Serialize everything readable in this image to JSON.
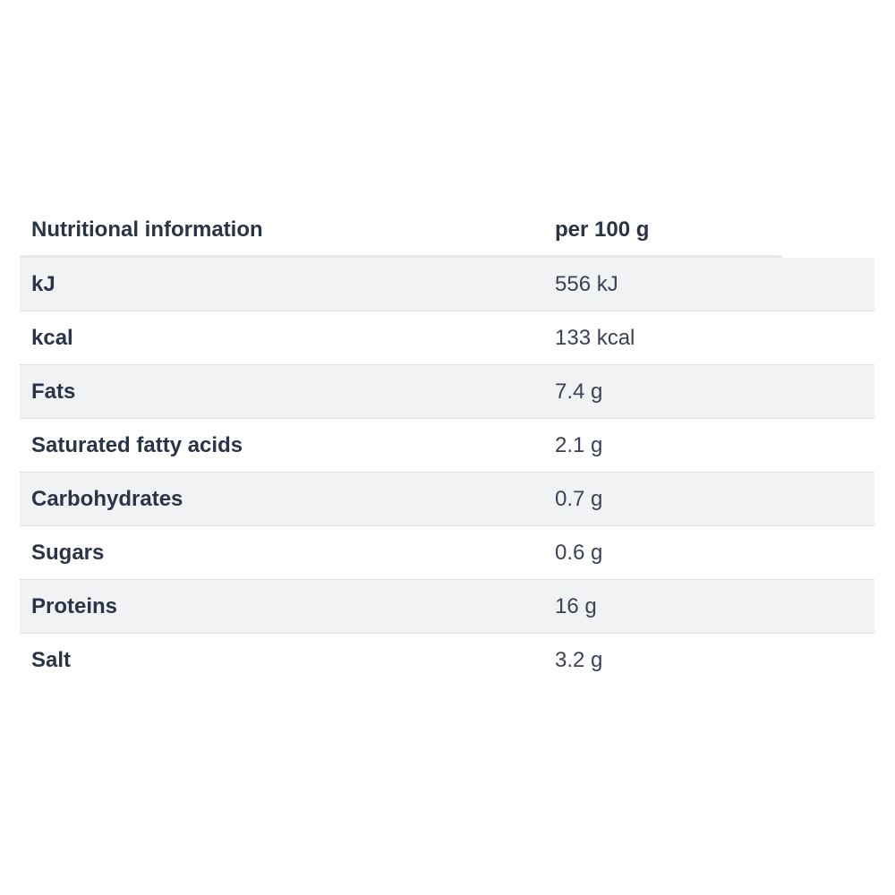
{
  "table": {
    "header": {
      "label": "Nutritional information",
      "value": "per 100 g"
    },
    "rows": [
      {
        "label": "kJ",
        "value": "556 kJ"
      },
      {
        "label": "kcal",
        "value": "133 kcal"
      },
      {
        "label": "Fats",
        "value": "7.4 g"
      },
      {
        "label": "Saturated fatty acids",
        "value": "2.1 g"
      },
      {
        "label": "Carbohydrates",
        "value": "0.7 g"
      },
      {
        "label": "Sugars",
        "value": "0.6 g"
      },
      {
        "label": "Proteins",
        "value": "16 g"
      },
      {
        "label": "Salt",
        "value": "3.2 g"
      }
    ]
  },
  "colors": {
    "text": "#2b3447",
    "row_shade": "#f1f2f4",
    "divider": "#dddfe4"
  }
}
